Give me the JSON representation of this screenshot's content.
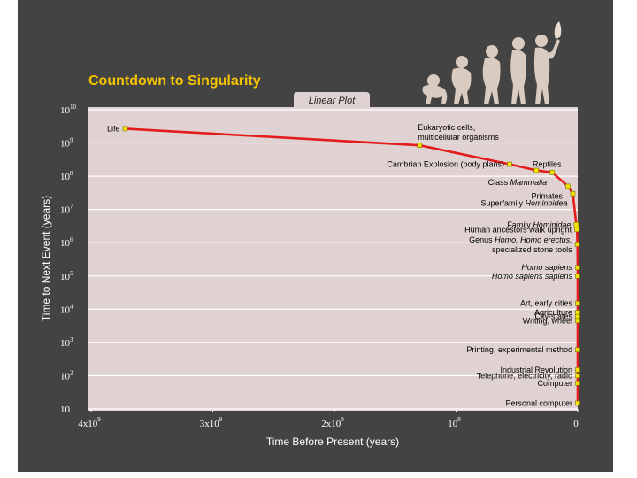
{
  "chart_data": {
    "type": "line",
    "title": "Countdown to Singularity",
    "plot_mode_tab": "Linear Plot",
    "xlabel": "Time Before Present (years)",
    "ylabel": "Time to Next Event (years)",
    "x_scale": "linear",
    "y_scale": "log",
    "xlim": [
      4000000000,
      0
    ],
    "ylim": [
      10,
      10000000000
    ],
    "x_ticks": [
      {
        "value": 4000000000,
        "base": "4x10",
        "exp": "9"
      },
      {
        "value": 3000000000,
        "base": "3x10",
        "exp": "9"
      },
      {
        "value": 2000000000,
        "base": "2x10",
        "exp": "9"
      },
      {
        "value": 1000000000,
        "base": "10",
        "exp": "9"
      },
      {
        "value": 0,
        "base": "0",
        "exp": ""
      }
    ],
    "y_ticks": [
      {
        "value": 10000000000,
        "base": "10",
        "exp": "10"
      },
      {
        "value": 1000000000,
        "base": "10",
        "exp": "9"
      },
      {
        "value": 100000000,
        "base": "10",
        "exp": "8"
      },
      {
        "value": 10000000,
        "base": "10",
        "exp": "7"
      },
      {
        "value": 1000000,
        "base": "10",
        "exp": "6"
      },
      {
        "value": 100000,
        "base": "10",
        "exp": "5"
      },
      {
        "value": 10000,
        "base": "10",
        "exp": "4"
      },
      {
        "value": 1000,
        "base": "10",
        "exp": "3"
      },
      {
        "value": 100,
        "base": "10",
        "exp": "2"
      },
      {
        "value": 10,
        "base": "10",
        "exp": ""
      }
    ],
    "grid": "horizontal",
    "line_color": "#e31b1b",
    "marker_color": "#f2e600",
    "plot_bg": "#e0d2d2",
    "background": "#434343",
    "title_color": "#f5c300",
    "points": [
      {
        "label_lines": [
          [
            {
              "t": "Life"
            }
          ]
        ],
        "x": 3720000000,
        "y": 2700000000,
        "side": "left"
      },
      {
        "label_lines": [
          [
            {
              "t": "Eukaryotic cells,"
            }
          ],
          [
            {
              "t": "multicellular organisms"
            }
          ]
        ],
        "x": 1300000000,
        "y": 850000000,
        "side": "above"
      },
      {
        "label_lines": [
          [
            {
              "t": "Cambrian Explosion (body plans)"
            }
          ]
        ],
        "x": 560000000,
        "y": 230000000,
        "side": "left"
      },
      {
        "label_lines": [
          [
            {
              "t": "Reptiles"
            }
          ]
        ],
        "x": 340000000,
        "y": 150000000,
        "side": "right-above"
      },
      {
        "label_lines": [
          [
            {
              "t": "Class "
            },
            {
              "t": "Mammalia",
              "i": true
            }
          ]
        ],
        "x": 210000000,
        "y": 130000000,
        "side": "left-below"
      },
      {
        "label_lines": [
          [
            {
              "t": "Primates"
            }
          ]
        ],
        "x": 80000000,
        "y": 50000000,
        "side": "left-below"
      },
      {
        "label_lines": [
          [
            {
              "t": "Superfamily "
            },
            {
              "t": "Hominoidea",
              "i": true
            }
          ]
        ],
        "x": 40000000,
        "y": 30000000,
        "side": "left-below"
      },
      {
        "label_lines": [
          [
            {
              "t": "Family "
            },
            {
              "t": "Hominidae",
              "i": true
            }
          ]
        ],
        "x": 12000000,
        "y": 3500000,
        "side": "left"
      },
      {
        "label_lines": [
          [
            {
              "t": "Human ancestors walk upright"
            }
          ]
        ],
        "x": 6000000,
        "y": 2500000,
        "side": "left"
      },
      {
        "label_lines": [
          [
            {
              "t": "Genus "
            },
            {
              "t": "Homo, Homo erectus,",
              "i": true
            }
          ],
          [
            {
              "t": "specialized stone tools"
            }
          ]
        ],
        "x": 2500000,
        "y": 900000,
        "side": "left"
      },
      {
        "label_lines": [
          [
            {
              "t": "Homo sapiens",
              "i": true
            }
          ]
        ],
        "x": 350000,
        "y": 180000,
        "side": "left"
      },
      {
        "label_lines": [
          [
            {
              "t": "Homo sapiens sapiens",
              "i": true
            }
          ]
        ],
        "x": 150000,
        "y": 100000,
        "side": "left"
      },
      {
        "label_lines": [
          [
            {
              "t": "Art, early cities"
            }
          ]
        ],
        "x": 35000,
        "y": 15000,
        "side": "left"
      },
      {
        "label_lines": [
          [
            {
              "t": "Agriculture"
            }
          ]
        ],
        "x": 19000,
        "y": 8000,
        "side": "left"
      },
      {
        "label_lines": [
          [
            {
              "t": "City-states"
            }
          ]
        ],
        "x": 11000,
        "y": 6000,
        "side": "left"
      },
      {
        "label_lines": [
          [
            {
              "t": "Writing, wheel"
            }
          ]
        ],
        "x": 5000,
        "y": 4500,
        "side": "left"
      },
      {
        "label_lines": [
          [
            {
              "t": "Printing, experimental method"
            }
          ]
        ],
        "x": 500,
        "y": 600,
        "side": "left"
      },
      {
        "label_lines": [
          [
            {
              "t": "Industrial Revolution"
            }
          ]
        ],
        "x": 200,
        "y": 150,
        "side": "left"
      },
      {
        "label_lines": [
          [
            {
              "t": "Telephone,  electricity, radio"
            }
          ]
        ],
        "x": 100,
        "y": 100,
        "side": "left"
      },
      {
        "label_lines": [
          [
            {
              "t": "Computer"
            }
          ]
        ],
        "x": 60,
        "y": 60,
        "side": "left"
      },
      {
        "label_lines": [
          [
            {
              "t": "Personal computer"
            }
          ]
        ],
        "x": 20,
        "y": 15,
        "side": "left"
      }
    ]
  }
}
